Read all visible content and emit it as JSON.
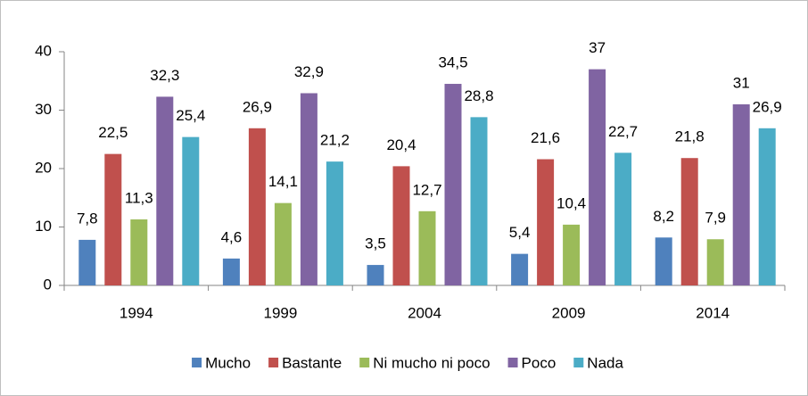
{
  "chart_data": {
    "type": "bar",
    "categories": [
      "1994",
      "1999",
      "2004",
      "2009",
      "2014"
    ],
    "series": [
      {
        "name": "Mucho",
        "color": "#4f81bd",
        "values": [
          7.8,
          4.6,
          3.5,
          5.4,
          8.2
        ],
        "value_labels": [
          "7,8",
          "4,6",
          "3,5",
          "5,4",
          "8,2"
        ]
      },
      {
        "name": "Bastante",
        "color": "#c0504d",
        "values": [
          22.5,
          26.9,
          20.4,
          21.6,
          21.8
        ],
        "value_labels": [
          "22,5",
          "26,9",
          "20,4",
          "21,6",
          "21,8"
        ]
      },
      {
        "name": "Ni mucho ni poco",
        "color": "#9bbb59",
        "values": [
          11.3,
          14.1,
          12.7,
          10.4,
          7.9
        ],
        "value_labels": [
          "11,3",
          "14,1",
          "12,7",
          "10,4",
          "7,9"
        ]
      },
      {
        "name": "Poco",
        "color": "#8064a2",
        "values": [
          32.3,
          32.9,
          34.5,
          37,
          31
        ],
        "value_labels": [
          "32,3",
          "32,9",
          "34,5",
          "37",
          "31"
        ]
      },
      {
        "name": "Nada",
        "color": "#4bacc6",
        "values": [
          25.4,
          21.2,
          28.8,
          22.7,
          26.9
        ],
        "value_labels": [
          "25,4",
          "21,2",
          "28,8",
          "22,7",
          "26,9"
        ]
      }
    ],
    "ylim": [
      0,
      40
    ],
    "yticks": [
      0,
      10,
      20,
      30,
      40
    ],
    "grid": false,
    "legend": "bottom"
  }
}
